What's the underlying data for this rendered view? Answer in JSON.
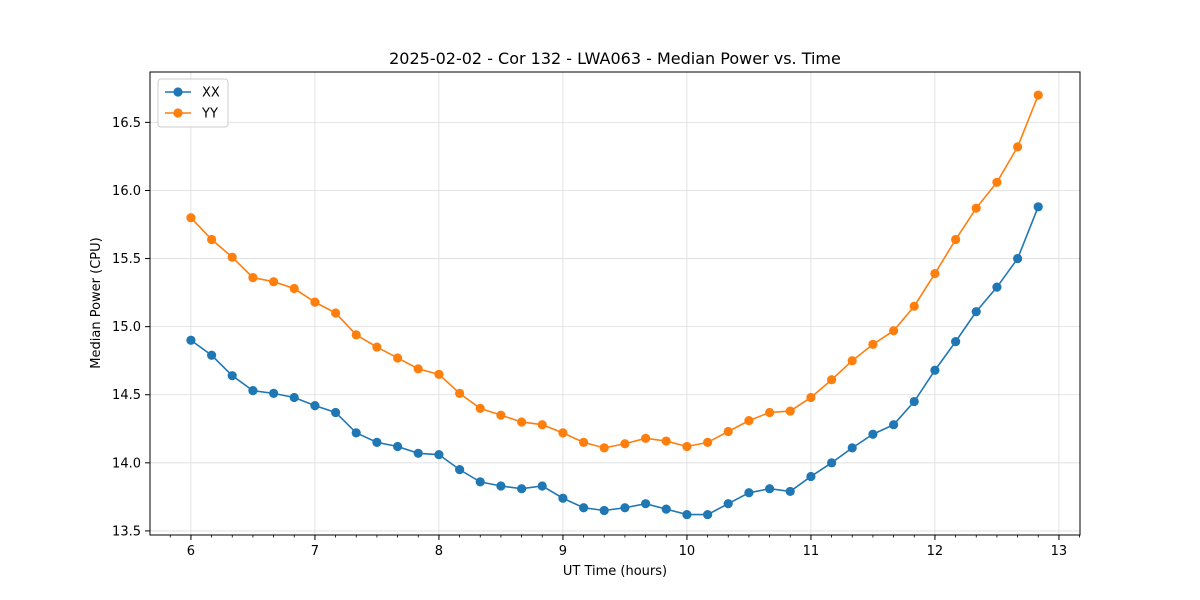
{
  "chart_data": {
    "type": "line",
    "title": "2025-02-02 - Cor 132 - LWA063 - Median Power vs. Time",
    "xlabel": "UT Time (hours)",
    "ylabel": "Median Power (CPU)",
    "xlim": [
      5.67,
      13.17
    ],
    "ylim": [
      13.47,
      16.87
    ],
    "xticks": [
      6,
      7,
      8,
      9,
      10,
      11,
      12,
      13
    ],
    "xtick_labels": [
      "6",
      "7",
      "8",
      "9",
      "10",
      "11",
      "12",
      "13"
    ],
    "yticks": [
      13.5,
      14.0,
      14.5,
      15.0,
      15.5,
      16.0,
      16.5
    ],
    "ytick_labels": [
      "13.5",
      "14.0",
      "14.5",
      "15.0",
      "15.5",
      "16.0",
      "16.5"
    ],
    "grid": true,
    "legend_position": "top-left",
    "x": [
      6.0,
      6.167,
      6.333,
      6.5,
      6.667,
      6.833,
      7.0,
      7.167,
      7.333,
      7.5,
      7.667,
      7.833,
      8.0,
      8.167,
      8.333,
      8.5,
      8.667,
      8.833,
      9.0,
      9.167,
      9.333,
      9.5,
      9.667,
      9.833,
      10.0,
      10.167,
      10.333,
      10.5,
      10.667,
      10.833,
      11.0,
      11.167,
      11.333,
      11.5,
      11.667,
      11.833,
      12.0,
      12.167,
      12.333,
      12.5,
      12.667,
      12.833
    ],
    "series": [
      {
        "name": "XX",
        "color": "#1f77b4",
        "values": [
          14.9,
          14.79,
          14.64,
          14.53,
          14.51,
          14.48,
          14.42,
          14.37,
          14.22,
          14.15,
          14.12,
          14.07,
          14.06,
          13.95,
          13.86,
          13.83,
          13.81,
          13.83,
          13.74,
          13.67,
          13.65,
          13.67,
          13.7,
          13.66,
          13.62,
          13.62,
          13.7,
          13.78,
          13.81,
          13.79,
          13.9,
          14.0,
          14.11,
          14.21,
          14.28,
          14.45,
          14.68,
          14.89,
          15.11,
          15.29,
          15.5,
          15.88
        ]
      },
      {
        "name": "YY",
        "color": "#ff7f0e",
        "values": [
          15.8,
          15.64,
          15.51,
          15.36,
          15.33,
          15.28,
          15.18,
          15.1,
          14.94,
          14.85,
          14.77,
          14.69,
          14.65,
          14.51,
          14.4,
          14.35,
          14.3,
          14.28,
          14.22,
          14.15,
          14.11,
          14.14,
          14.18,
          14.16,
          14.12,
          14.15,
          14.23,
          14.31,
          14.37,
          14.38,
          14.48,
          14.61,
          14.75,
          14.87,
          14.97,
          15.15,
          15.39,
          15.64,
          15.87,
          16.06,
          16.32,
          16.7
        ]
      }
    ]
  }
}
